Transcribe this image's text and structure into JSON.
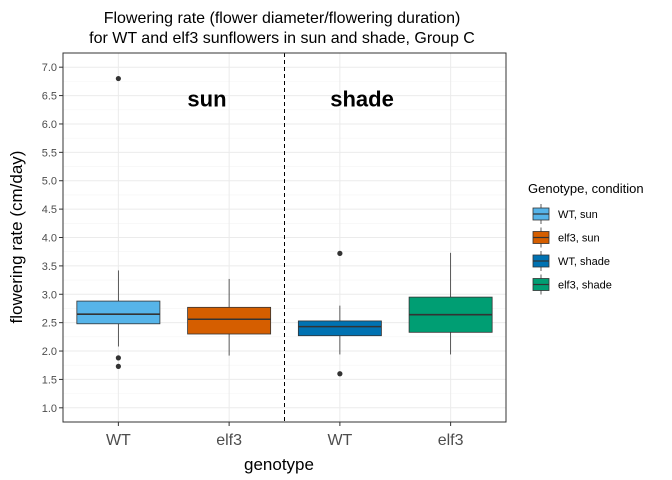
{
  "chart_data": {
    "type": "boxplot",
    "title_lines": [
      "Flowering rate (flower diameter/flowering duration)",
      "for WT and elf3 sunflowers in sun and shade, Group C"
    ],
    "xlabel": "genotype",
    "ylabel": "flowering rate (cm/day)",
    "ylim": [
      0.75,
      7.25
    ],
    "yticks": [
      "1.0",
      "1.5",
      "2.0",
      "2.5",
      "3.0",
      "3.5",
      "4.0",
      "4.5",
      "5.0",
      "5.5",
      "6.0",
      "6.5",
      "7.0"
    ],
    "grid": true,
    "divider_after_category": 2,
    "annotations": [
      {
        "text": "sun",
        "x": 1.8,
        "y": 6.45
      },
      {
        "text": "shade",
        "x": 3.2,
        "y": 6.45
      }
    ],
    "legend": {
      "title": "Genotype, condition",
      "placement": "right"
    },
    "boxes": [
      {
        "category": "WT",
        "series": "WT, sun",
        "color": "#56B4E9",
        "q1": 2.48,
        "median": 2.65,
        "q3": 2.88,
        "whisker_low": 2.08,
        "whisker_high": 3.42,
        "outliers": [
          6.8,
          1.88,
          1.73
        ]
      },
      {
        "category": "elf3",
        "series": "elf3, sun",
        "color": "#D55E00",
        "q1": 2.3,
        "median": 2.56,
        "q3": 2.77,
        "whisker_low": 1.92,
        "whisker_high": 3.27,
        "outliers": []
      },
      {
        "category": "WT",
        "series": "WT, shade",
        "color": "#0072B2",
        "q1": 2.27,
        "median": 2.43,
        "q3": 2.53,
        "whisker_low": 1.94,
        "whisker_high": 2.8,
        "outliers": [
          3.72,
          1.6
        ]
      },
      {
        "category": "elf3",
        "series": "elf3, shade",
        "color": "#009E73",
        "q1": 2.33,
        "median": 2.64,
        "q3": 2.95,
        "whisker_low": 1.94,
        "whisker_high": 3.73,
        "outliers": []
      }
    ]
  }
}
